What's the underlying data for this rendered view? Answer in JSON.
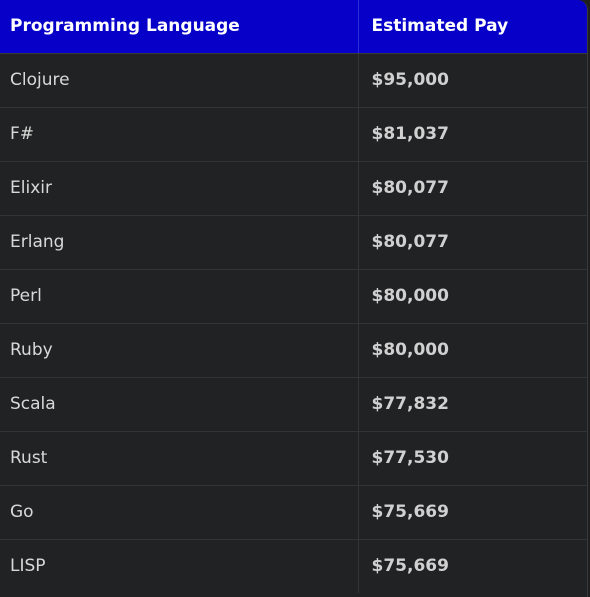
{
  "table": {
    "headers": [
      "Programming Language",
      "Estimated Pay"
    ],
    "rows": [
      [
        "Clojure",
        "$95,000"
      ],
      [
        "F#",
        "$81,037"
      ],
      [
        "Elixir",
        "$80,077"
      ],
      [
        "Erlang",
        "$80,077"
      ],
      [
        "Perl",
        "$80,000"
      ],
      [
        "Ruby",
        "$80,000"
      ],
      [
        "Scala",
        "$77,832"
      ],
      [
        "Rust",
        "$77,530"
      ],
      [
        "Go",
        "$75,669"
      ],
      [
        "LISP",
        "$75,669"
      ]
    ]
  },
  "colors": {
    "header_bg": "#0600c8",
    "body_bg": "#212224",
    "text": "#d9d9d9"
  }
}
